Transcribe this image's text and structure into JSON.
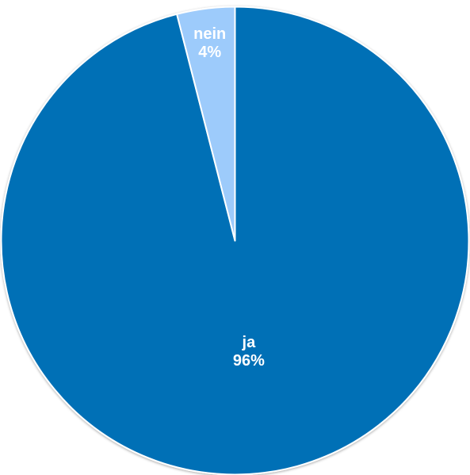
{
  "chart_data": {
    "type": "pie",
    "title": "",
    "categories": [
      "ja",
      "nein"
    ],
    "values": [
      96,
      4
    ],
    "value_labels": [
      "96%",
      "4%"
    ],
    "colors": [
      "#0070B6",
      "#9DCBFB"
    ],
    "start_angle_deg": 0,
    "direction": "clockwise",
    "legend": "none"
  }
}
